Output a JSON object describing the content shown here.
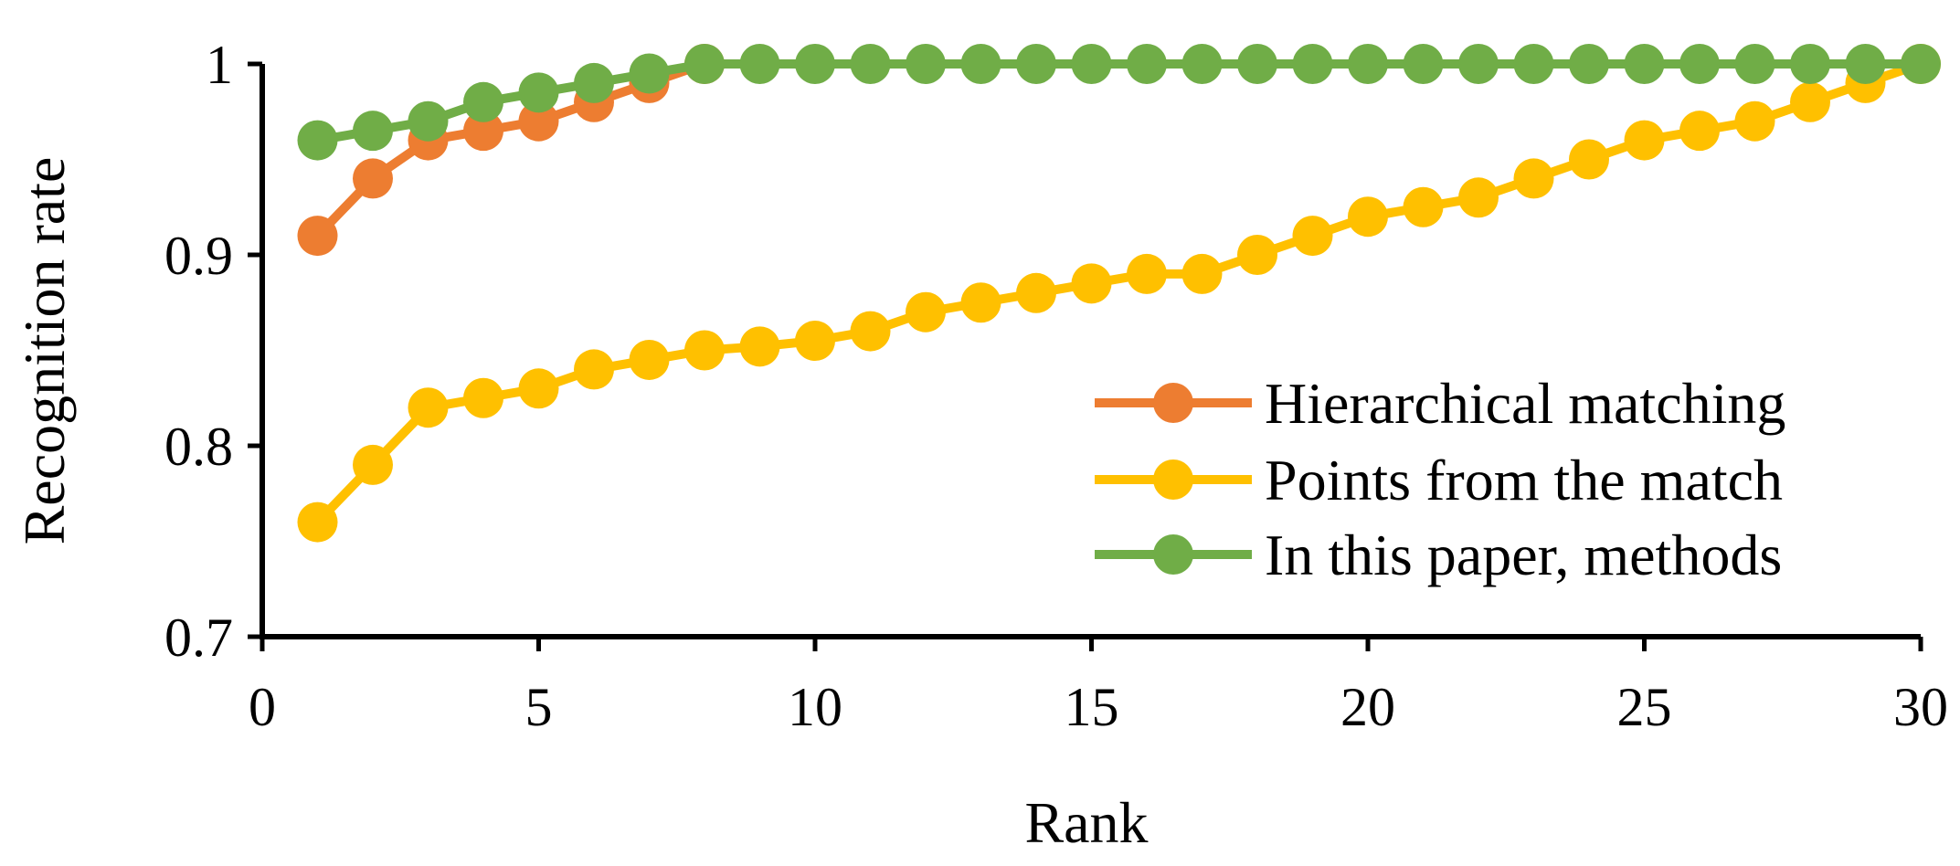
{
  "chart_data": {
    "type": "line",
    "xlabel": "Rank",
    "ylabel": "Recognition rate",
    "xlim": [
      0,
      30
    ],
    "ylim": [
      0.7,
      1.0
    ],
    "xticks": [
      "0",
      "5",
      "10",
      "15",
      "20",
      "25",
      "30"
    ],
    "yticks": [
      "0.7",
      "0.8",
      "0.9",
      "1"
    ],
    "grid": false,
    "legend_position": "bottom-right",
    "series": [
      {
        "name": "Hierarchical matching",
        "color": "#ED7D31",
        "x": [
          1,
          2,
          3,
          4,
          5,
          6,
          7,
          8
        ],
        "values": [
          0.91,
          0.94,
          0.96,
          0.965,
          0.97,
          0.98,
          0.99,
          1.0
        ]
      },
      {
        "name": "Points from the match",
        "color": "#FFC000",
        "x": [
          1,
          2,
          3,
          4,
          5,
          6,
          7,
          8,
          9,
          10,
          11,
          12,
          13,
          14,
          15,
          16,
          17,
          18,
          19,
          20,
          21,
          22,
          23,
          24,
          25,
          26,
          27,
          28,
          29,
          30
        ],
        "values": [
          0.76,
          0.79,
          0.82,
          0.825,
          0.83,
          0.84,
          0.845,
          0.85,
          0.852,
          0.855,
          0.86,
          0.87,
          0.875,
          0.88,
          0.885,
          0.89,
          0.89,
          0.9,
          0.91,
          0.92,
          0.925,
          0.93,
          0.94,
          0.95,
          0.96,
          0.965,
          0.97,
          0.98,
          0.99,
          1.0
        ]
      },
      {
        "name": "In this paper, methods",
        "color": "#70AD47",
        "x": [
          1,
          2,
          3,
          4,
          5,
          6,
          7,
          8,
          9,
          10,
          11,
          12,
          13,
          14,
          15,
          16,
          17,
          18,
          19,
          20,
          21,
          22,
          23,
          24,
          25,
          26,
          27,
          28,
          29,
          30
        ],
        "values": [
          0.96,
          0.965,
          0.97,
          0.98,
          0.985,
          0.99,
          0.995,
          1.0,
          1.0,
          1.0,
          1.0,
          1.0,
          1.0,
          1.0,
          1.0,
          1.0,
          1.0,
          1.0,
          1.0,
          1.0,
          1.0,
          1.0,
          1.0,
          1.0,
          1.0,
          1.0,
          1.0,
          1.0,
          1.0,
          1.0
        ]
      }
    ]
  }
}
